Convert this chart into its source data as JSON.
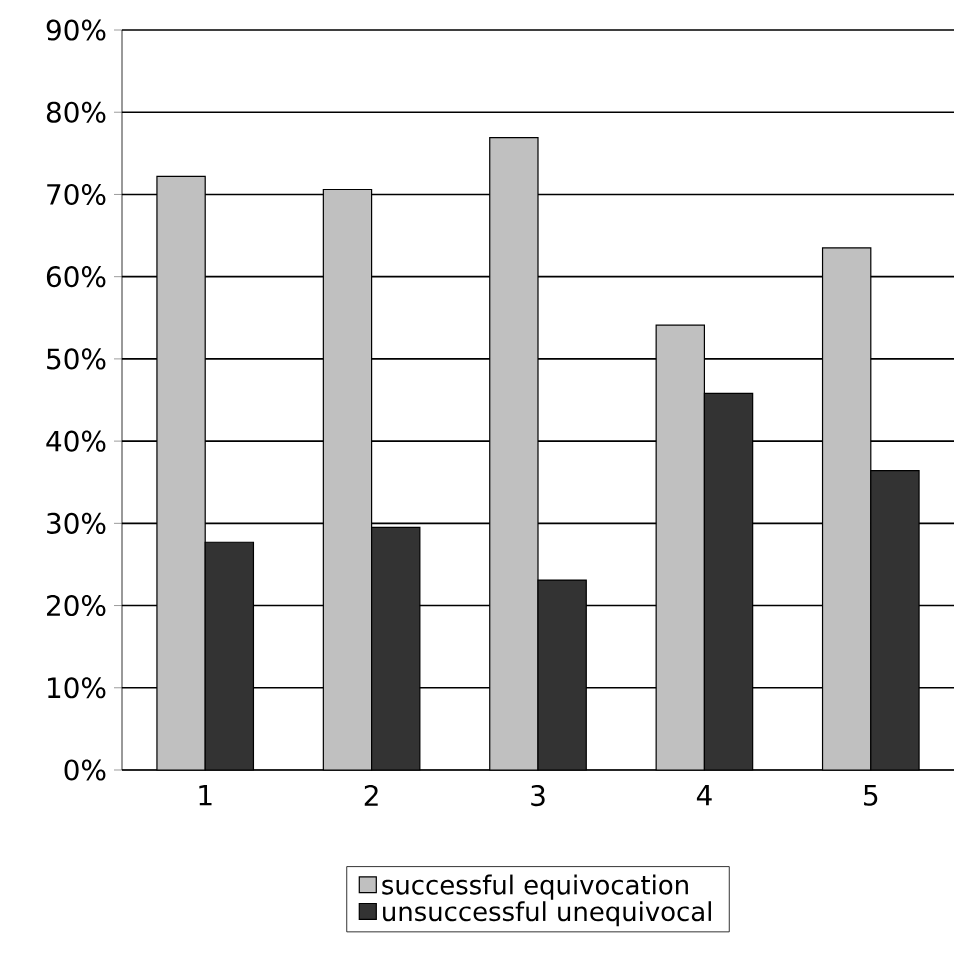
{
  "chart_data": {
    "type": "bar",
    "categories": [
      "1",
      "2",
      "3",
      "4",
      "5"
    ],
    "series": [
      {
        "name": "successful equivocation",
        "color": "#c0c0c0",
        "values": [
          72.2,
          70.6,
          76.9,
          54.1,
          63.5
        ]
      },
      {
        "name": "unsuccessful unequivocal",
        "color": "#333333",
        "values": [
          27.7,
          29.5,
          23.1,
          45.8,
          36.4
        ]
      }
    ],
    "ylim": [
      0,
      90
    ],
    "yticks": [
      {
        "value": 0,
        "label": "0%"
      },
      {
        "value": 10,
        "label": "10%"
      },
      {
        "value": 20,
        "label": "20%"
      },
      {
        "value": 30,
        "label": "30%"
      },
      {
        "value": 40,
        "label": "40%"
      },
      {
        "value": 50,
        "label": "50%"
      },
      {
        "value": 60,
        "label": "60%"
      },
      {
        "value": 70,
        "label": "70%"
      },
      {
        "value": 80,
        "label": "80%"
      },
      {
        "value": 90,
        "label": "90%"
      }
    ],
    "grid": "y",
    "legend": "bottom"
  }
}
